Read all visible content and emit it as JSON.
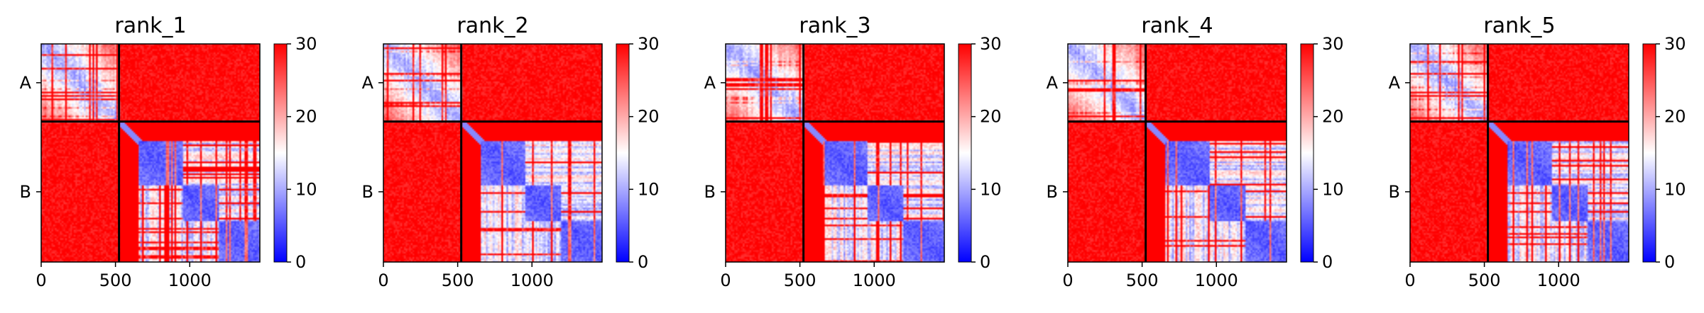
{
  "chart_data": [
    {
      "type": "heatmap",
      "title": "rank_1",
      "xticks": [
        "0",
        "500",
        "1000"
      ],
      "yticks": [
        "A",
        "B"
      ],
      "xlim": [
        0,
        1472
      ],
      "ylim": [
        0,
        1472
      ],
      "chain_boundary": 524,
      "colorbar": {
        "min": 0,
        "max": 30,
        "ticks": [
          "0",
          "10",
          "20",
          "30"
        ],
        "colormap": "bwr"
      },
      "colors": {
        "low": "#0000ff",
        "mid": "#ffffff",
        "high": "#ff0000"
      }
    },
    {
      "type": "heatmap",
      "title": "rank_2",
      "xticks": [
        "0",
        "500",
        "1000"
      ],
      "yticks": [
        "A",
        "B"
      ],
      "xlim": [
        0,
        1472
      ],
      "ylim": [
        0,
        1472
      ],
      "chain_boundary": 524,
      "colorbar": {
        "min": 0,
        "max": 30,
        "ticks": [
          "0",
          "10",
          "20",
          "30"
        ],
        "colormap": "bwr"
      },
      "colors": {
        "low": "#0000ff",
        "mid": "#ffffff",
        "high": "#ff0000"
      }
    },
    {
      "type": "heatmap",
      "title": "rank_3",
      "xticks": [
        "0",
        "500",
        "1000"
      ],
      "yticks": [
        "A",
        "B"
      ],
      "xlim": [
        0,
        1472
      ],
      "ylim": [
        0,
        1472
      ],
      "chain_boundary": 524,
      "colorbar": {
        "min": 0,
        "max": 30,
        "ticks": [
          "0",
          "10",
          "20",
          "30"
        ],
        "colormap": "bwr"
      },
      "colors": {
        "low": "#0000ff",
        "mid": "#ffffff",
        "high": "#ff0000"
      }
    },
    {
      "type": "heatmap",
      "title": "rank_4",
      "xticks": [
        "0",
        "500",
        "1000"
      ],
      "yticks": [
        "A",
        "B"
      ],
      "xlim": [
        0,
        1472
      ],
      "ylim": [
        0,
        1472
      ],
      "chain_boundary": 524,
      "colorbar": {
        "min": 0,
        "max": 30,
        "ticks": [
          "0",
          "10",
          "20",
          "30"
        ],
        "colormap": "bwr"
      },
      "colors": {
        "low": "#0000ff",
        "mid": "#ffffff",
        "high": "#ff0000"
      }
    },
    {
      "type": "heatmap",
      "title": "rank_5",
      "xticks": [
        "0",
        "500",
        "1000"
      ],
      "yticks": [
        "A",
        "B"
      ],
      "xlim": [
        0,
        1472
      ],
      "ylim": [
        0,
        1472
      ],
      "chain_boundary": 524,
      "colorbar": {
        "min": 0,
        "max": 30,
        "ticks": [
          "0",
          "10",
          "20",
          "30"
        ],
        "colormap": "bwr"
      },
      "colors": {
        "low": "#0000ff",
        "mid": "#ffffff",
        "high": "#ff0000"
      }
    }
  ]
}
